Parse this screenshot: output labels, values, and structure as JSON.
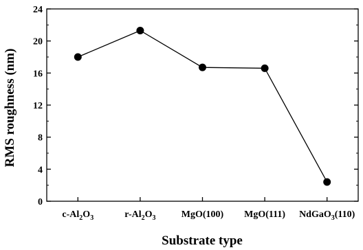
{
  "chart_data": {
    "type": "line",
    "xlabel": "Substrate type",
    "ylabel": "RMS roughness (nm)",
    "categories": [
      {
        "base": "c-Al",
        "sub1": "2",
        "mid": "O",
        "sub2": "3",
        "tail": ""
      },
      {
        "base": "r-Al",
        "sub1": "2",
        "mid": "O",
        "sub2": "3",
        "tail": ""
      },
      {
        "base": "MgO(100)",
        "sub1": "",
        "mid": "",
        "sub2": "",
        "tail": ""
      },
      {
        "base": "MgO(111)",
        "sub1": "",
        "mid": "",
        "sub2": "",
        "tail": ""
      },
      {
        "base": "NdGaO",
        "sub1": "3",
        "mid": "",
        "sub2": "",
        "tail": "(110)"
      }
    ],
    "values": [
      18.0,
      21.3,
      16.7,
      16.6,
      2.4
    ],
    "ylim": [
      0,
      24
    ],
    "yticks": [
      "0",
      "4",
      "8",
      "12",
      "16",
      "20",
      "24"
    ],
    "grid": false,
    "marker": "filled-circle",
    "line_color": "#000000",
    "marker_color": "#000000"
  }
}
